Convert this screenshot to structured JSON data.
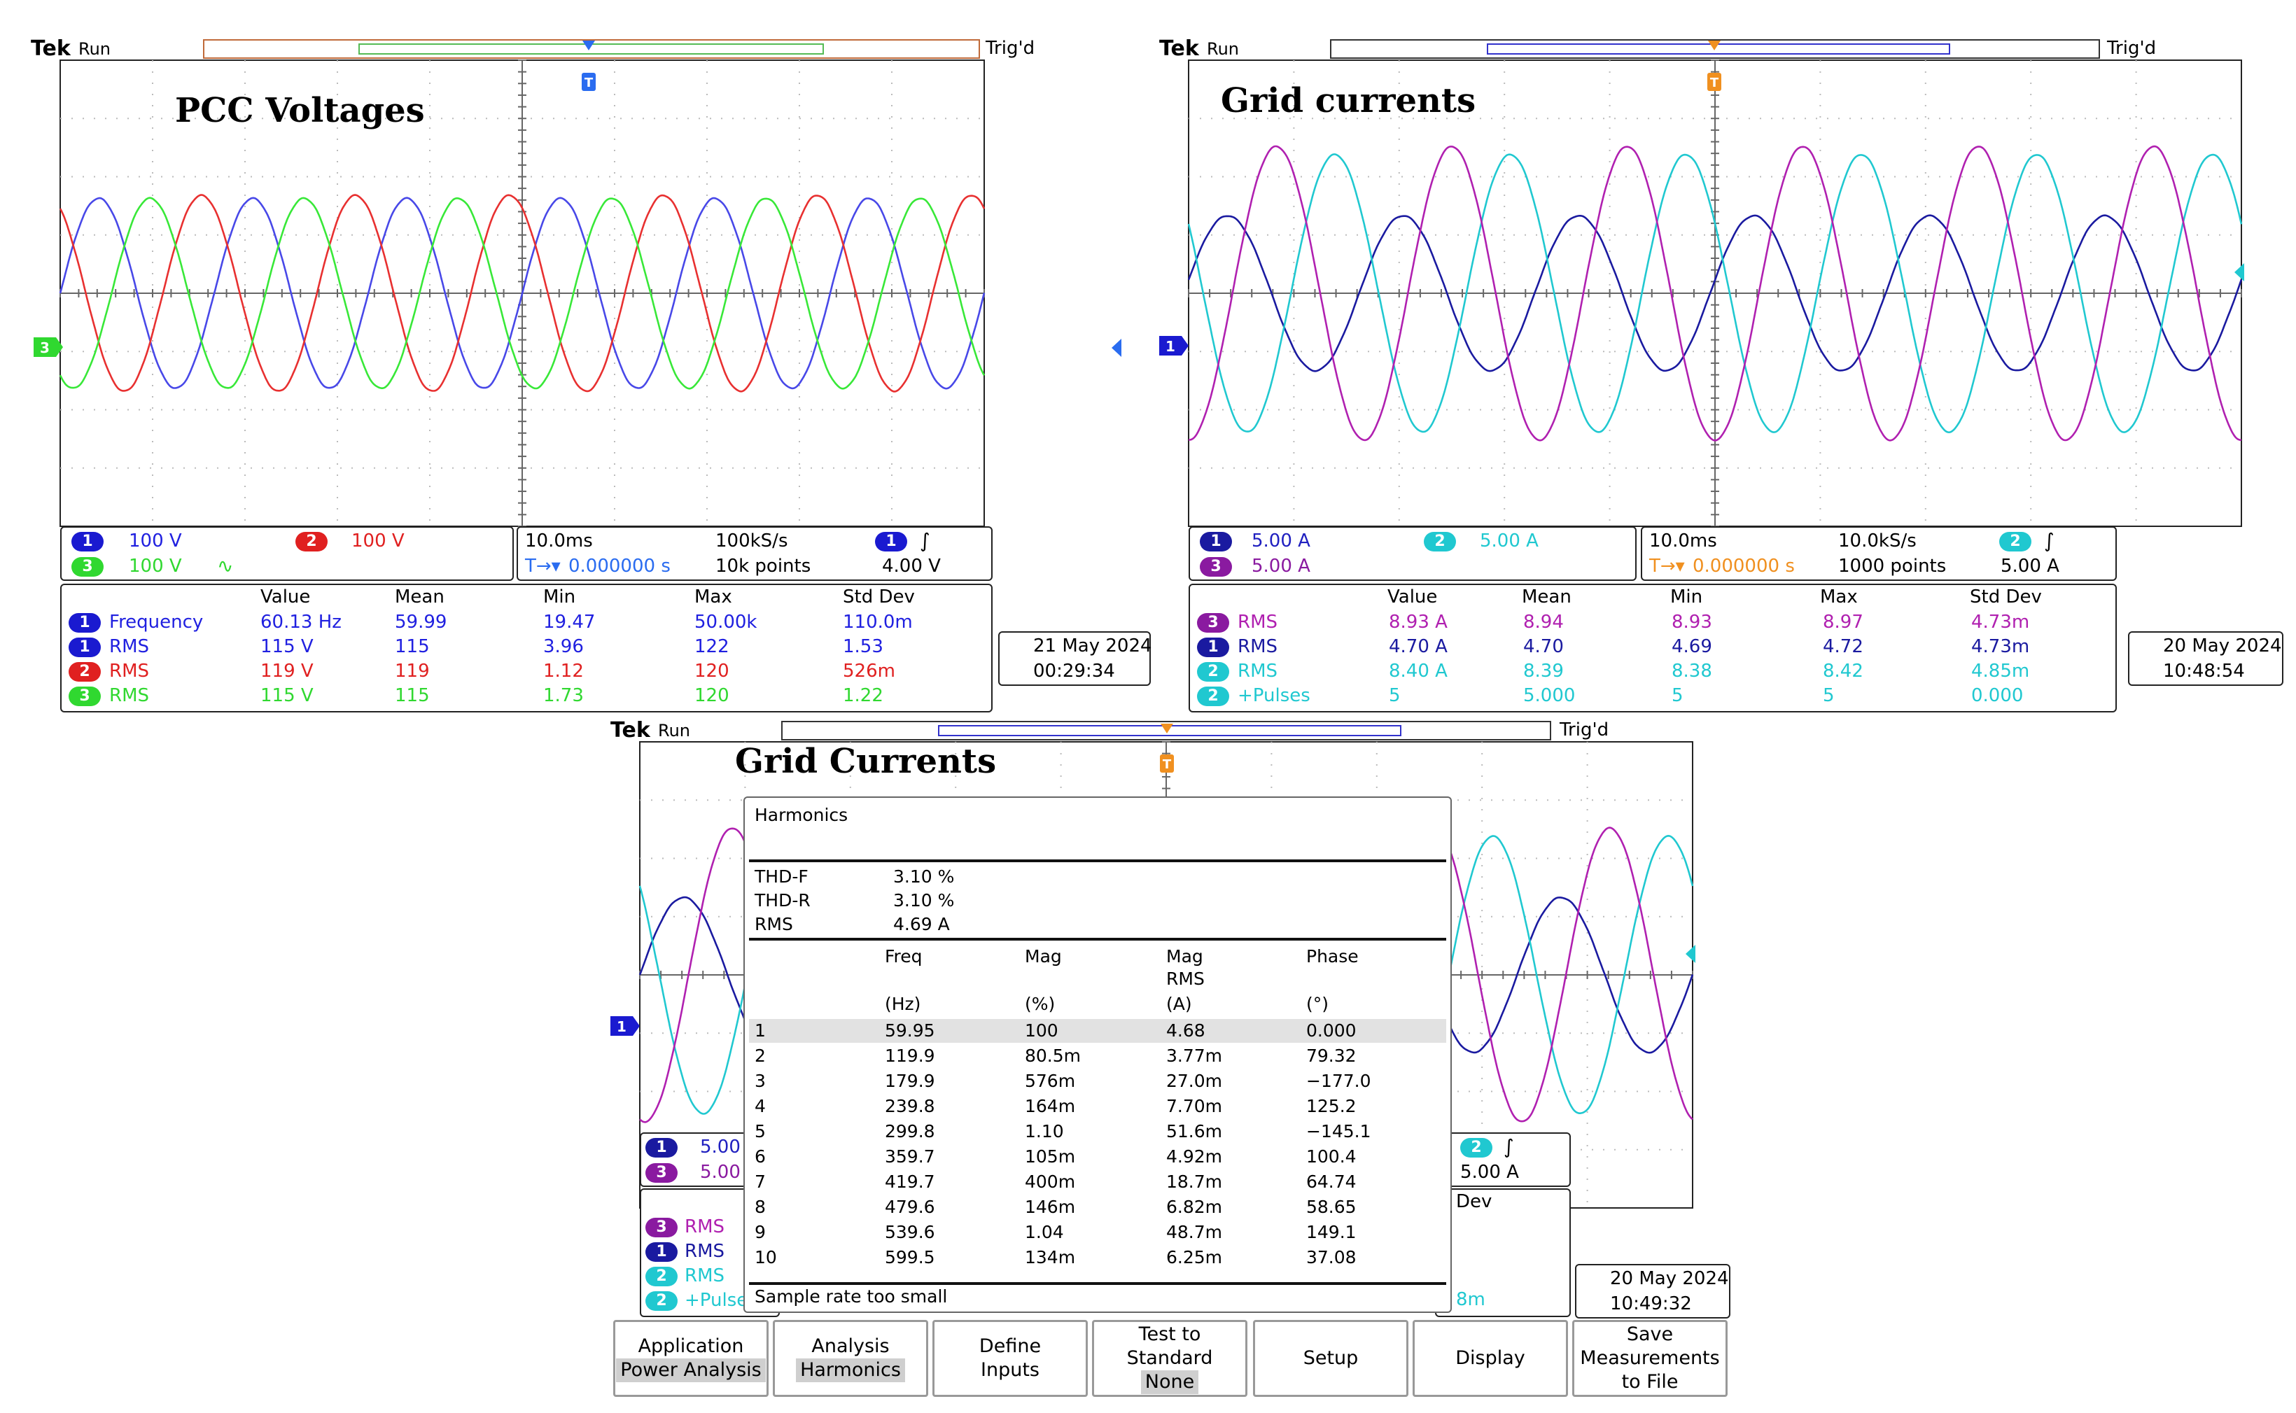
{
  "panels": [
    {
      "id": "pcc",
      "tek": "Tek",
      "status": "Run",
      "trig_status": "Trig'd",
      "title": "PCC Voltages",
      "channels": [
        {
          "badge": "1",
          "scale": "100 V",
          "color": "#2020e0"
        },
        {
          "badge": "2",
          "scale": "100 V",
          "color": "#e02020"
        },
        {
          "badge": "3",
          "scale": "100 V",
          "color": "#20e020"
        }
      ],
      "timebase": {
        "time_div": "10.0ms",
        "sample_rate": "100kS/s",
        "position": "0.000000 s",
        "record": "10k points",
        "trig_channel": "1",
        "trig_level": "4.00 V"
      },
      "meas_headers": [
        "Value",
        "Mean",
        "Min",
        "Max",
        "Std Dev"
      ],
      "measurements": [
        {
          "ch": "1",
          "name": "Frequency",
          "color": "#2020e0",
          "vals": [
            "60.13 Hz",
            "59.99",
            "19.47",
            "50.00k",
            "110.0m"
          ]
        },
        {
          "ch": "1",
          "name": "RMS",
          "color": "#2020e0",
          "vals": [
            "115 V",
            "115",
            "3.96",
            "122",
            "1.53"
          ]
        },
        {
          "ch": "2",
          "name": "RMS",
          "color": "#e02020",
          "vals": [
            "119 V",
            "119",
            "1.12",
            "120",
            "526m"
          ]
        },
        {
          "ch": "3",
          "name": "RMS",
          "color": "#30d830",
          "vals": [
            "115 V",
            "115",
            "1.73",
            "120",
            "1.22"
          ]
        }
      ],
      "date": "21 May 2024",
      "time": "00:29:34"
    },
    {
      "id": "grid1",
      "tek": "Tek",
      "status": "Run",
      "trig_status": "Trig'd",
      "title": "Grid currents",
      "channels": [
        {
          "badge": "1",
          "scale": "5.00 A",
          "color": "#1a1aa0"
        },
        {
          "badge": "2",
          "scale": "5.00 A",
          "color": "#20c8d0"
        },
        {
          "badge": "3",
          "scale": "5.00 A",
          "color": "#8a1aa0"
        }
      ],
      "timebase": {
        "time_div": "10.0ms",
        "sample_rate": "10.0kS/s",
        "position": "0.000000 s",
        "record": "1000 points",
        "trig_channel": "2",
        "trig_level": "5.00 A"
      },
      "meas_headers": [
        "Value",
        "Mean",
        "Min",
        "Max",
        "Std Dev"
      ],
      "measurements": [
        {
          "ch": "3",
          "name": "RMS",
          "color": "#b020b0",
          "vals": [
            "8.93 A",
            "8.94",
            "8.93",
            "8.97",
            "4.73m"
          ]
        },
        {
          "ch": "1",
          "name": "RMS",
          "color": "#1a1aa0",
          "vals": [
            "4.70 A",
            "4.70",
            "4.69",
            "4.72",
            "4.73m"
          ]
        },
        {
          "ch": "2",
          "name": "RMS",
          "color": "#20c8d0",
          "vals": [
            "8.40 A",
            "8.39",
            "8.38",
            "8.42",
            "4.85m"
          ]
        },
        {
          "ch": "2",
          "name": "+Pulses",
          "color": "#20c8d0",
          "vals": [
            "5",
            "5.000",
            "5",
            "5",
            "0.000"
          ]
        }
      ],
      "date": "20 May 2024",
      "time": "10:48:54"
    },
    {
      "id": "grid2",
      "tek": "Tek",
      "status": "Run",
      "trig_status": "Trig'd",
      "title": "Grid Currents",
      "channels": [
        {
          "badge": "1",
          "scale": "5.00",
          "color": "#1a1aa0"
        },
        {
          "badge": "3",
          "scale": "5.00",
          "color": "#8a1aa0"
        }
      ],
      "timebase": {
        "trig_channel": "2",
        "trig_level": "5.00 A"
      },
      "meas_partial": [
        {
          "ch": "3",
          "name": "RMS",
          "color": "#b020b0"
        },
        {
          "ch": "1",
          "name": "RMS",
          "color": "#1a1aa0"
        },
        {
          "ch": "2",
          "name": "RMS",
          "color": "#20c8d0"
        },
        {
          "ch": "2",
          "name": "+Pulse",
          "color": "#20c8d0"
        }
      ],
      "meas_header_fragment": "Dev",
      "meas_value_fragment": "8m",
      "date": "20 May 2024",
      "time": "10:49:32"
    }
  ],
  "harmonics": {
    "title": "Harmonics",
    "summary": [
      {
        "label": "THD-F",
        "value": "3.10 %"
      },
      {
        "label": "THD-R",
        "value": "3.10 %"
      },
      {
        "label": "RMS",
        "value": "4.69 A"
      }
    ],
    "headers": [
      "Freq",
      "Mag",
      "Mag",
      "Phase"
    ],
    "header_line2": "RMS",
    "units": [
      "(Hz)",
      "(%)",
      "(A)",
      "(°)"
    ],
    "rows": [
      [
        "1",
        "59.95",
        "100",
        "4.68",
        "0.000"
      ],
      [
        "2",
        "119.9",
        "80.5m",
        "3.77m",
        "79.32"
      ],
      [
        "3",
        "179.9",
        "576m",
        "27.0m",
        "−177.0"
      ],
      [
        "4",
        "239.8",
        "164m",
        "7.70m",
        "125.2"
      ],
      [
        "5",
        "299.8",
        "1.10",
        "51.6m",
        "−145.1"
      ],
      [
        "6",
        "359.7",
        "105m",
        "4.92m",
        "100.4"
      ],
      [
        "7",
        "419.7",
        "400m",
        "18.7m",
        "64.74"
      ],
      [
        "8",
        "479.6",
        "146m",
        "6.82m",
        "58.65"
      ],
      [
        "9",
        "539.6",
        "1.04",
        "48.7m",
        "149.1"
      ],
      [
        "10",
        "599.5",
        "134m",
        "6.25m",
        "37.08"
      ]
    ],
    "footer": "Sample rate too small"
  },
  "menu": [
    {
      "line1": "Application",
      "line2": "Power Analysis",
      "selected_line": 2
    },
    {
      "line1": "Analysis",
      "line2": "Harmonics",
      "selected_line": 2
    },
    {
      "line1": "Define",
      "line2": "Inputs"
    },
    {
      "line1": "Test to",
      "line2": "Standard",
      "line3": "None",
      "selected_line": 3
    },
    {
      "line1": "Setup"
    },
    {
      "line1": "Display"
    },
    {
      "line1": "Save",
      "line2": "Measurements",
      "line3": "to File"
    }
  ],
  "chart_data": [
    {
      "type": "line",
      "title": "PCC Voltages",
      "x_unit": "ms",
      "time_per_div": 10,
      "divisions_x": 10,
      "y_unit": "V",
      "volts_per_div": 100,
      "divisions_y": 8,
      "series": [
        {
          "name": "1",
          "color": "#4848e8",
          "frequency_hz": 60,
          "amplitude": 163,
          "phase_deg": 0
        },
        {
          "name": "2",
          "color": "#e83030",
          "frequency_hz": 60,
          "amplitude": 168,
          "phase_deg": 120
        },
        {
          "name": "3",
          "color": "#38e838",
          "frequency_hz": 60,
          "amplitude": 163,
          "phase_deg": 240
        }
      ]
    },
    {
      "type": "line",
      "title": "Grid currents",
      "x_unit": "ms",
      "time_per_div": 10,
      "divisions_x": 10,
      "y_unit": "A",
      "amps_per_div": 5,
      "divisions_y": 8,
      "series": [
        {
          "name": "1",
          "color": "#1a1aa0",
          "frequency_hz": 60,
          "amplitude": 6.65,
          "phase_deg": 10
        },
        {
          "name": "2",
          "color": "#20c8d0",
          "frequency_hz": 60,
          "amplitude": 11.9,
          "phase_deg": 150
        },
        {
          "name": "3",
          "color": "#b020b0",
          "frequency_hz": 60,
          "amplitude": 12.6,
          "phase_deg": 270
        }
      ]
    },
    {
      "type": "line",
      "title": "Grid Currents",
      "x_unit": "ms",
      "time_per_div": 10,
      "divisions_x": 10,
      "y_unit": "A",
      "amps_per_div": 5,
      "divisions_y": 8,
      "series": [
        {
          "name": "1",
          "color": "#1a1aa0",
          "frequency_hz": 60,
          "amplitude": 6.65,
          "phase_deg": 0
        },
        {
          "name": "2",
          "color": "#20c8d0",
          "frequency_hz": 60,
          "amplitude": 11.9,
          "phase_deg": 140
        },
        {
          "name": "3",
          "color": "#b020b0",
          "frequency_hz": 60,
          "amplitude": 12.6,
          "phase_deg": 260
        }
      ]
    }
  ]
}
